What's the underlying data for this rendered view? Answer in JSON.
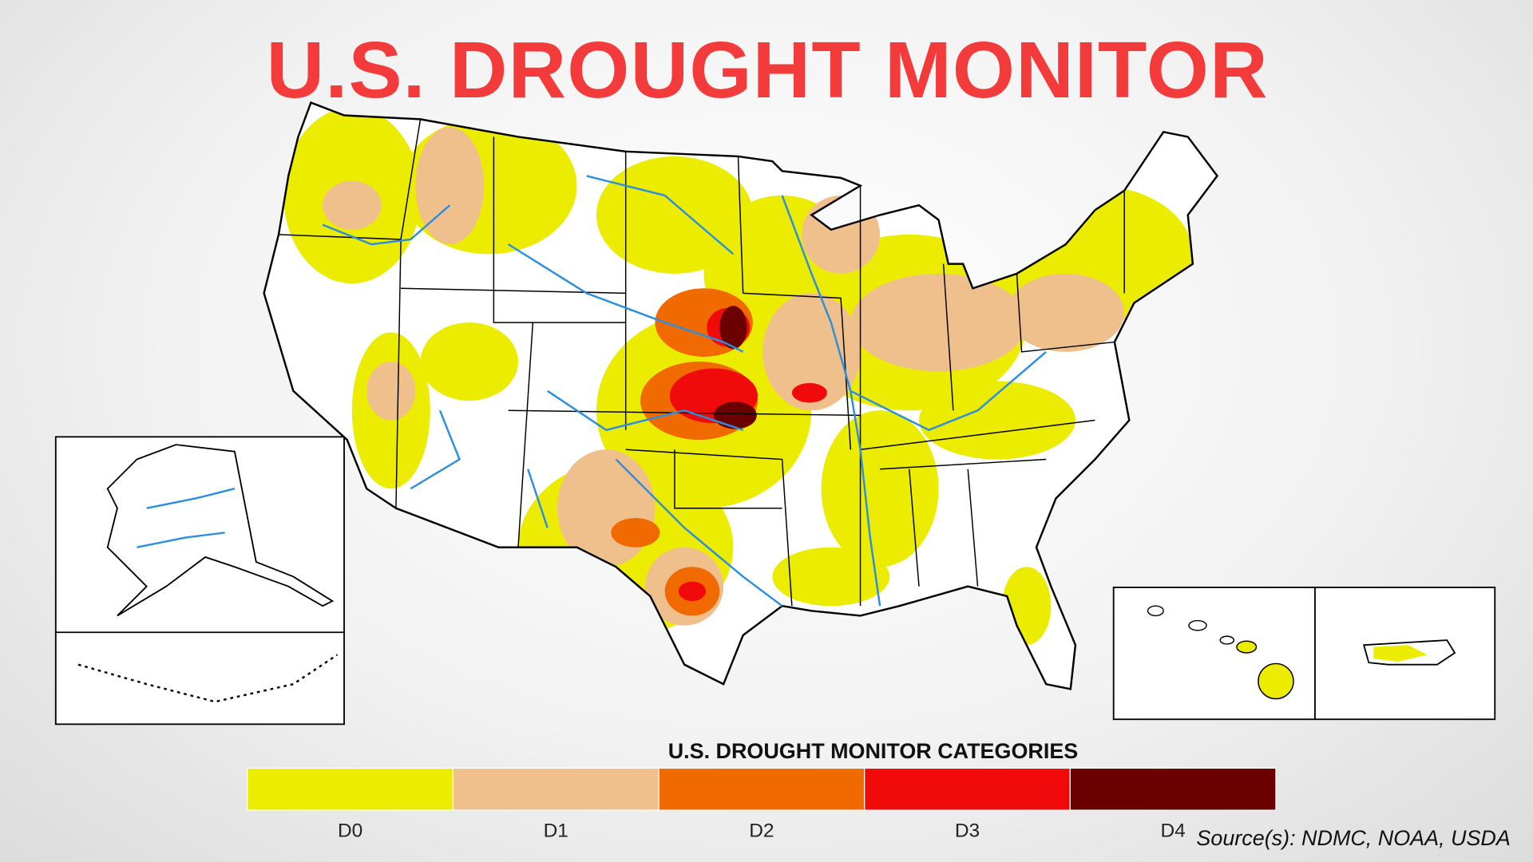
{
  "title": "U.S. DROUGHT MONITOR",
  "legend": {
    "title": "U.S. DROUGHT MONITOR CATEGORIES",
    "categories": [
      {
        "label": "D0",
        "color": "#ecec00"
      },
      {
        "label": "D1",
        "color": "#f0c08c"
      },
      {
        "label": "D2",
        "color": "#f06a00"
      },
      {
        "label": "D3",
        "color": "#f00a0a"
      },
      {
        "label": "D4",
        "color": "#6b0000"
      }
    ]
  },
  "source": "Source(s): NDMC, NOAA, USDA"
}
